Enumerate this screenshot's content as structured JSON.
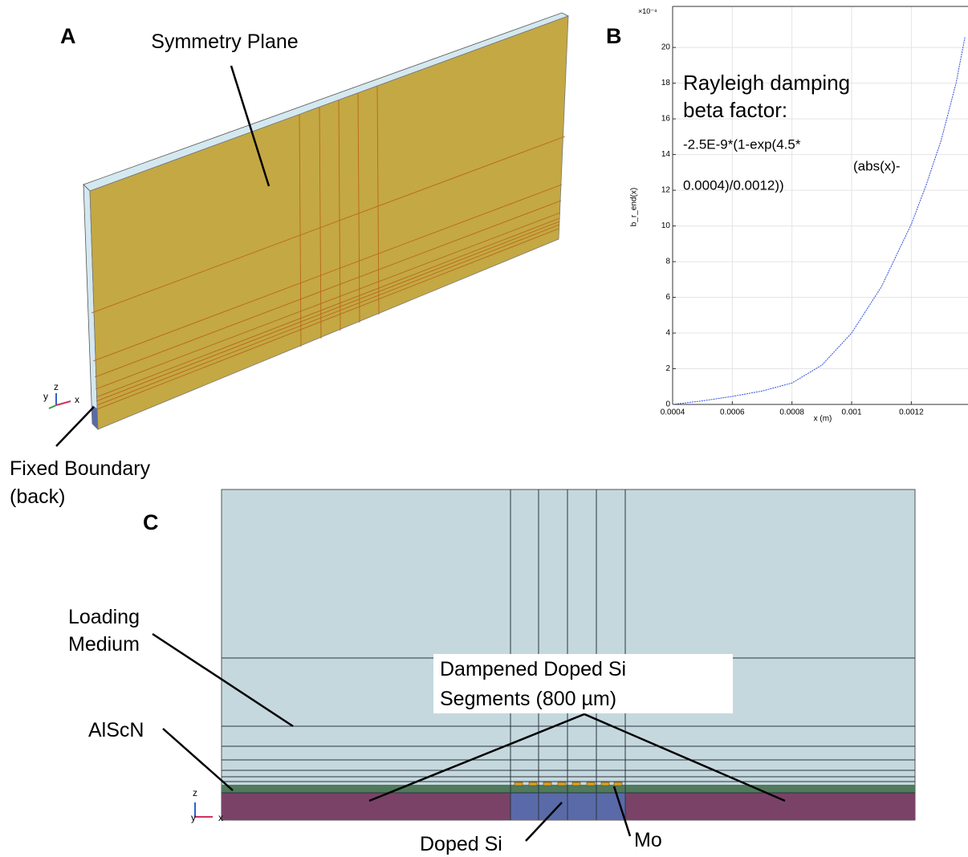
{
  "panel_a": {
    "label": "A",
    "surface_label": "Symmetry Plane",
    "boundary_label": [
      "Fixed Boundary",
      "(back)"
    ],
    "axes": [
      "y",
      "z",
      "x"
    ]
  },
  "panel_b": {
    "label": "B"
  },
  "chart_data": {
    "type": "line",
    "x_label": "x (m)",
    "y_label": "b_r_end(x)",
    "y_multiplier": "×10⁻⁸",
    "annotation": [
      "Rayleigh damping",
      "beta factor:",
      "-2.5E-9*(1-exp(4.5*",
      "(abs(x)-",
      "0.0004)/0.0012))"
    ],
    "x": [
      0.0004,
      0.0005,
      0.0006,
      0.0007,
      0.0008,
      0.0009,
      0.001,
      0.0011,
      0.0012,
      0.00125,
      0.0013,
      0.00135,
      0.00138
    ],
    "series": [
      {
        "color": "#3050d8",
        "values": [
          0,
          0.2,
          0.45,
          0.75,
          1.2,
          2.2,
          4,
          6.6,
          10.1,
          12.3,
          14.8,
          18,
          20.6
        ]
      }
    ],
    "xlim": [
      0.0004,
      0.00139
    ],
    "ylim": [
      0,
      22.3
    ],
    "xticks": [
      0.0004,
      0.0006,
      0.0008,
      0.001,
      0.0012
    ],
    "yticks": [
      0,
      2,
      4,
      6,
      8,
      10,
      12,
      14,
      16,
      18,
      20
    ],
    "grid": true
  },
  "panel_c": {
    "label": "C",
    "medium_label": [
      "Loading",
      "Medium"
    ],
    "piezo_label": "AlScN",
    "segments_label": [
      "Dampened Doped Si",
      "Segments (800 µm)"
    ],
    "substrate_label": "Doped Si",
    "electrode_label": "Mo",
    "axes": [
      "z",
      "y",
      "x"
    ]
  }
}
